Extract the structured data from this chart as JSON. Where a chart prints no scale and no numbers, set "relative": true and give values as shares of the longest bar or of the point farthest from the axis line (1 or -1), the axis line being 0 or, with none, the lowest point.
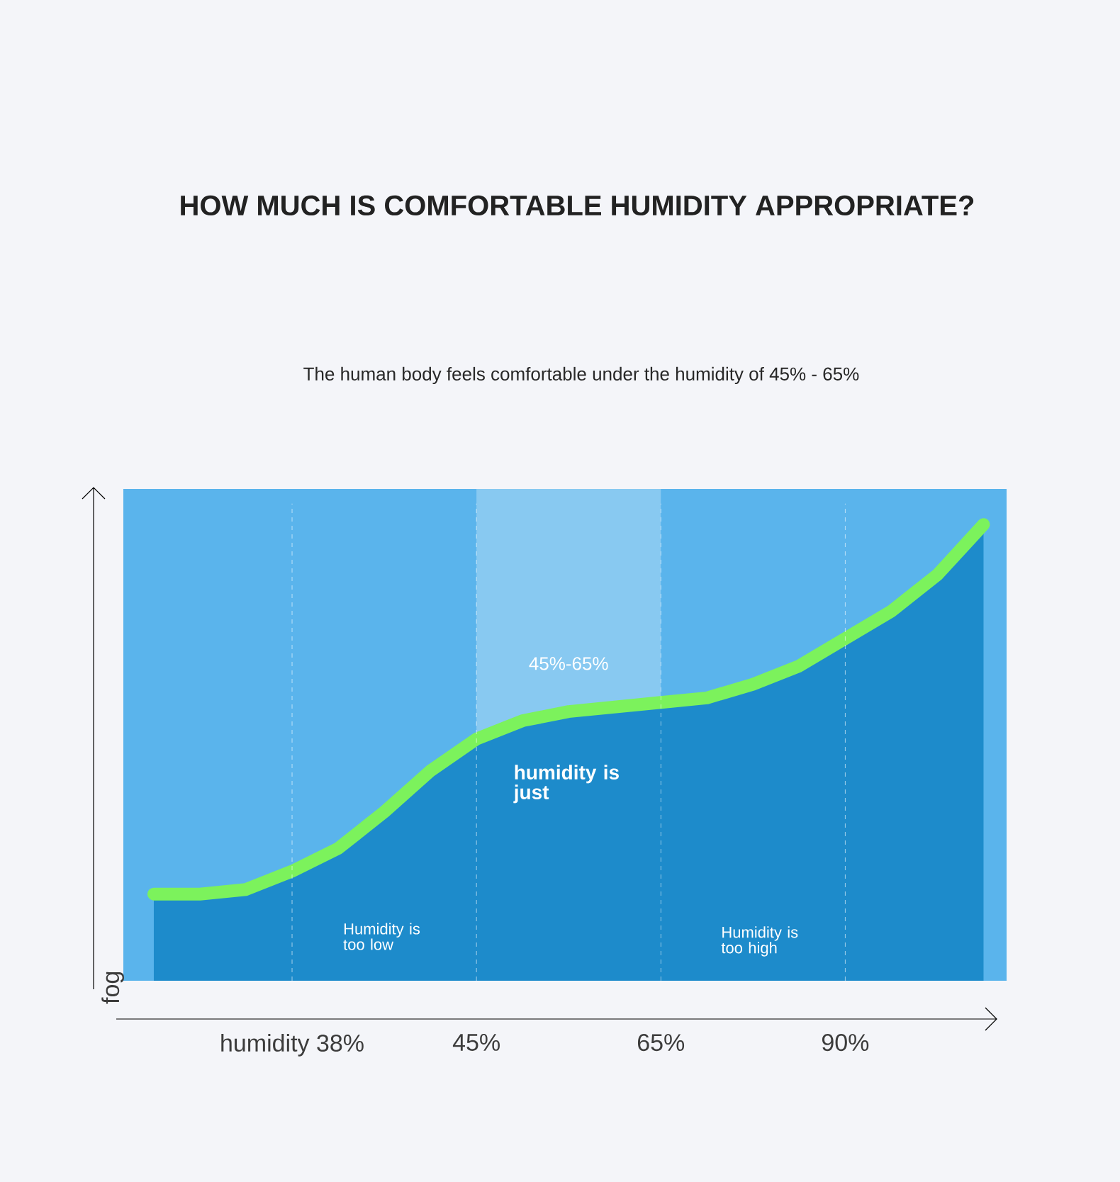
{
  "chart_data": {
    "type": "area",
    "title": "HOW MUCH IS COMFORTABLE HUMIDITY APPROPRIATE?",
    "subtitle": "The human body feels comfortable under the humidity of 45% - 65%",
    "ylabel": "fog",
    "relative": true,
    "categories": [
      null,
      null,
      null,
      "humidity 38%",
      null,
      null,
      null,
      "45%",
      null,
      null,
      null,
      "65%",
      null,
      null,
      null,
      "90%",
      null,
      null,
      null
    ],
    "series": [
      {
        "color": "#1d8bcb",
        "values": [
          0.19,
          0.19,
          0.2,
          0.24,
          0.29,
          0.37,
          0.46,
          0.53,
          0.57,
          0.59,
          0.6,
          0.61,
          0.62,
          0.65,
          0.69,
          0.75,
          0.81,
          0.89,
          1.0
        ]
      },
      {
        "type": "line",
        "color": "#7cf25c",
        "values": [
          0.19,
          0.19,
          0.2,
          0.24,
          0.29,
          0.37,
          0.46,
          0.53,
          0.57,
          0.59,
          0.6,
          0.61,
          0.62,
          0.65,
          0.69,
          0.75,
          0.81,
          0.89,
          1.0
        ]
      }
    ],
    "bands": [
      {
        "axis": "x",
        "from": "45%",
        "to": "65%",
        "color": "#ffffff"
      }
    ],
    "ref_lines": [
      {
        "axis": "x",
        "value": "humidity 38%",
        "color": "#ffffff",
        "line_style": "dashed"
      },
      {
        "axis": "x",
        "value": "45%",
        "color": "#ffffff",
        "line_style": "dashed"
      },
      {
        "axis": "x",
        "value": "65%",
        "color": "#ffffff",
        "line_style": "dashed"
      },
      {
        "axis": "x",
        "value": "90%",
        "color": "#ffffff",
        "line_style": "dashed"
      }
    ],
    "annotations": [
      "45%-65%",
      "humidity is just",
      "Humidity is too low",
      "Humidity is too high"
    ],
    "marker": "none",
    "line_style": "solid"
  }
}
